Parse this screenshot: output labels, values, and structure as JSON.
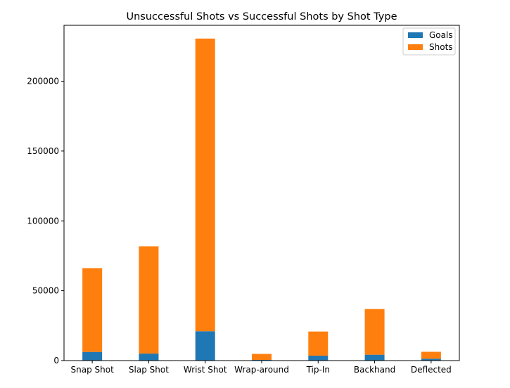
{
  "chart_data": {
    "type": "bar",
    "stacked": true,
    "title": "Unsuccessful Shots vs Successful Shots by Shot Type",
    "xlabel": "",
    "ylabel": "",
    "categories": [
      "Snap Shot",
      "Slap Shot",
      "Wrist Shot",
      "Wrap-around",
      "Tip-In",
      "Backhand",
      "Deflected"
    ],
    "series": [
      {
        "name": "Goals",
        "color": "#1f77b4",
        "values": [
          6200,
          5000,
          21000,
          500,
          3500,
          4200,
          1300
        ]
      },
      {
        "name": "Shots",
        "color": "#ff7f0e",
        "values": [
          60000,
          76800,
          209500,
          4300,
          17300,
          32700,
          5000
        ]
      }
    ],
    "ylim": [
      0,
      240000
    ],
    "yticks": [
      0,
      50000,
      100000,
      150000,
      200000
    ],
    "ytick_labels": [
      "0",
      "50000",
      "100000",
      "150000",
      "200000"
    ],
    "legend_position": "top-right",
    "grid": false
  }
}
